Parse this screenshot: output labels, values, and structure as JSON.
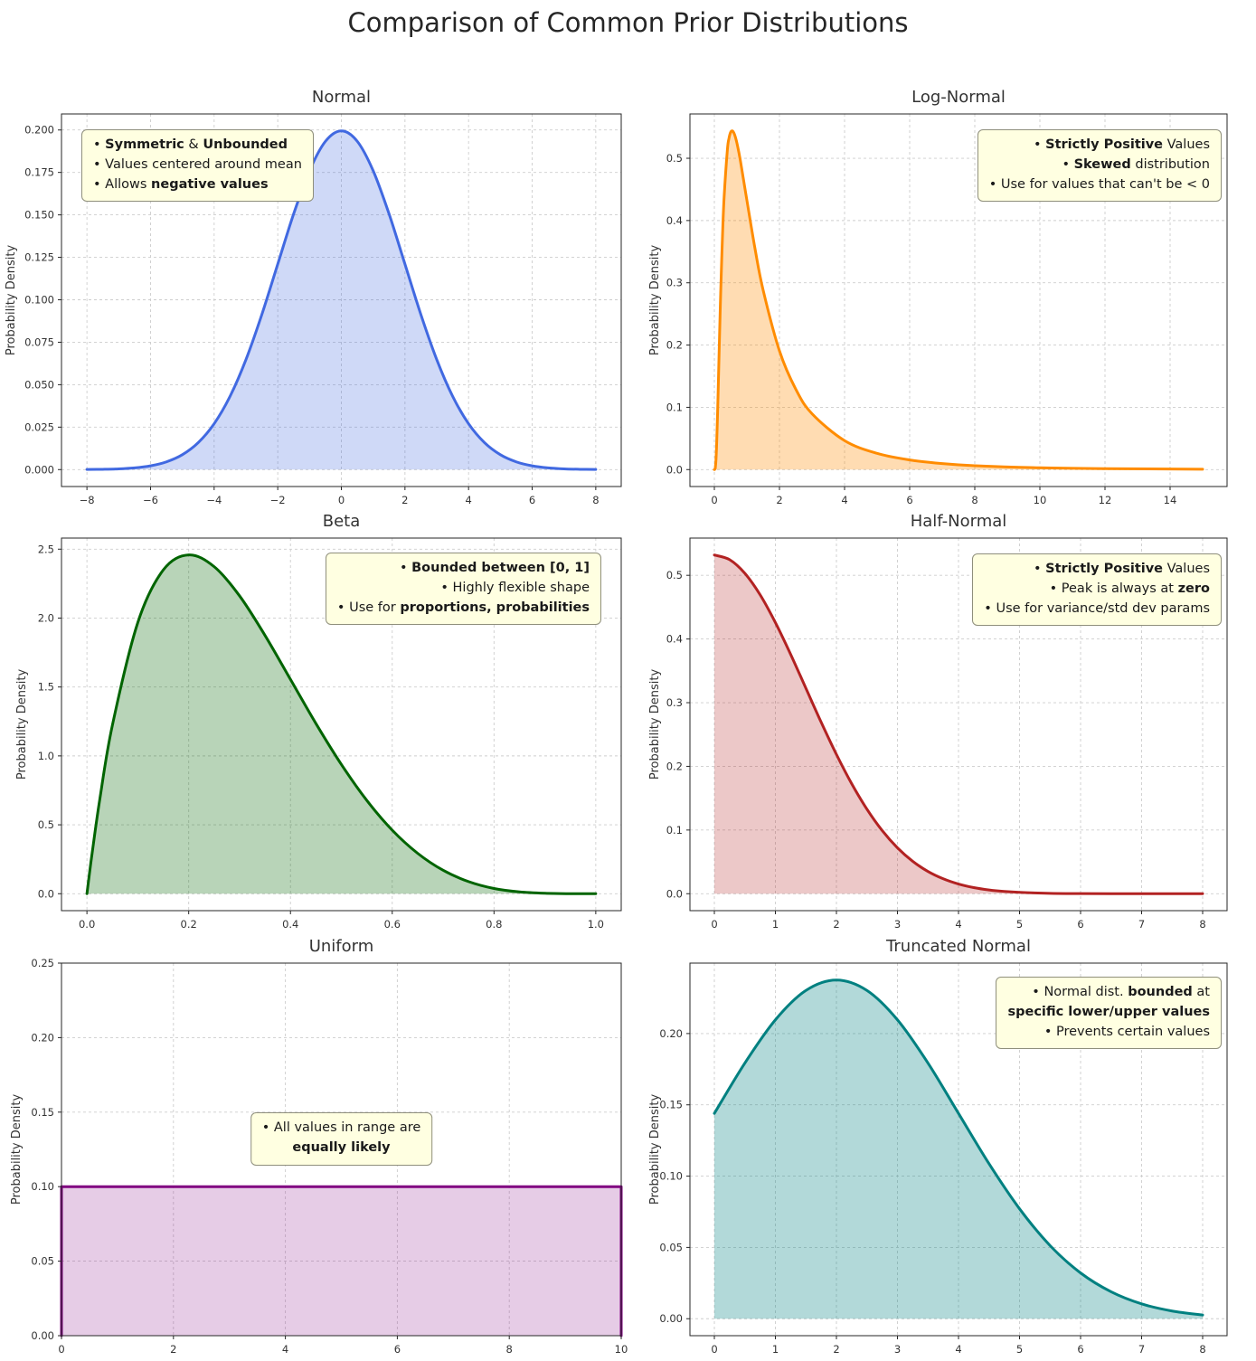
{
  "figure": {
    "title": "Comparison of Common Prior Distributions"
  },
  "chart_data": [
    {
      "type": "area",
      "title": "Normal",
      "ylabel": "Probability Density",
      "color": "#4169E1",
      "fill_opacity": 0.25,
      "line_width": 3,
      "shape": "smooth",
      "grid": true,
      "xlim": [
        -8.8,
        8.8
      ],
      "ylim": [
        -0.00997,
        0.20944
      ],
      "xticks": [
        -8,
        -6,
        -4,
        -2,
        0,
        2,
        4,
        6,
        8
      ],
      "xtick_labels": [
        "−8",
        "−6",
        "−4",
        "−2",
        "0",
        "2",
        "4",
        "6",
        "8"
      ],
      "yticks": [
        0,
        0.025,
        0.05,
        0.075,
        0.1,
        0.125,
        0.15,
        0.175,
        0.2
      ],
      "ytick_labels": [
        "0.000",
        "0.025",
        "0.050",
        "0.075",
        "0.100",
        "0.125",
        "0.150",
        "0.175",
        "0.200"
      ],
      "x": [
        -8,
        -7.5,
        -7,
        -6.5,
        -6,
        -5.5,
        -5,
        -4.5,
        -4,
        -3.5,
        -3,
        -2.5,
        -2,
        -1.5,
        -1,
        -0.5,
        0,
        0.5,
        1,
        1.5,
        2,
        2.5,
        3,
        3.5,
        4,
        4.5,
        5,
        5.5,
        6,
        6.5,
        7,
        7.5,
        8
      ],
      "y": [
        7e-05,
        0.00018,
        0.00044,
        0.00102,
        0.00222,
        0.00455,
        0.00876,
        0.01588,
        0.027,
        0.04314,
        0.06476,
        0.09132,
        0.12099,
        0.15057,
        0.17603,
        0.19333,
        0.19947,
        0.19333,
        0.17603,
        0.15057,
        0.12099,
        0.09132,
        0.06476,
        0.04314,
        0.027,
        0.01588,
        0.00876,
        0.00455,
        0.00222,
        0.00102,
        0.00044,
        0.00018,
        7e-05
      ],
      "annotation": {
        "anchor": "top-left",
        "align": "left",
        "ox": 22,
        "oy": 17,
        "lines": [
          [
            {
              "t": "• "
            },
            {
              "t": "Symmetric",
              "b": true
            },
            {
              "t": " & "
            },
            {
              "t": "Unbounded",
              "b": true
            }
          ],
          [
            {
              "t": "• Values centered around mean"
            }
          ],
          [
            {
              "t": "• Allows "
            },
            {
              "t": "negative values",
              "b": true
            }
          ]
        ]
      }
    },
    {
      "type": "area",
      "title": "Log-Normal",
      "ylabel": "Probability Density",
      "color": "#FF8C00",
      "fill_opacity": 0.3,
      "line_width": 3,
      "shape": "smooth",
      "grid": true,
      "xlim": [
        -0.75,
        15.75
      ],
      "ylim": [
        -0.0272,
        0.5712
      ],
      "xticks": [
        0,
        2,
        4,
        6,
        8,
        10,
        12,
        14
      ],
      "xtick_labels": [
        "0",
        "2",
        "4",
        "6",
        "8",
        "10",
        "12",
        "14"
      ],
      "yticks": [
        0,
        0.1,
        0.2,
        0.3,
        0.4,
        0.5
      ],
      "ytick_labels": [
        "0.0",
        "0.1",
        "0.2",
        "0.3",
        "0.4",
        "0.5"
      ],
      "x": [
        0,
        0.02,
        0.03,
        0.05,
        0.07,
        0.1,
        0.125,
        0.15,
        0.175,
        0.2,
        0.25,
        0.3,
        0.4,
        0.45,
        0.5,
        0.55,
        0.6,
        0.65,
        0.7,
        0.8,
        1.0,
        1.25,
        1.5,
        2,
        2.5,
        3,
        4,
        5,
        6,
        7,
        8,
        10,
        12,
        15
      ],
      "y": [
        0,
        0.0007,
        0.0031,
        0.016,
        0.0408,
        0.0927,
        0.1436,
        0.196,
        0.2465,
        0.294,
        0.375,
        0.4376,
        0.5136,
        0.5322,
        0.5418,
        0.544,
        0.5407,
        0.5333,
        0.5228,
        0.4961,
        0.4324,
        0.3545,
        0.2879,
        0.1907,
        0.1292,
        0.0897,
        0.0465,
        0.026,
        0.0155,
        0.0097,
        0.0063,
        0.0029,
        0.0015,
        0.0006
      ],
      "annotation": {
        "anchor": "top-right",
        "align": "right",
        "ox": 6,
        "oy": 17,
        "lines": [
          [
            {
              "t": "• "
            },
            {
              "t": "Strictly Positive",
              "b": true
            },
            {
              "t": " Values"
            }
          ],
          [
            {
              "t": "• "
            },
            {
              "t": "Skewed",
              "b": true
            },
            {
              "t": " distribution"
            }
          ],
          [
            {
              "t": "• Use for values that can't be < 0"
            }
          ]
        ]
      }
    },
    {
      "type": "area",
      "title": "Beta",
      "ylabel": "Probability Density",
      "color": "#006400",
      "fill_opacity": 0.28,
      "line_width": 3,
      "shape": "smooth",
      "grid": true,
      "xlim": [
        -0.05,
        1.05
      ],
      "ylim": [
        -0.1229,
        2.5805
      ],
      "xticks": [
        0,
        0.2,
        0.4,
        0.6,
        0.8,
        1.0
      ],
      "xtick_labels": [
        "0.0",
        "0.2",
        "0.4",
        "0.6",
        "0.8",
        "1.0"
      ],
      "yticks": [
        0,
        0.5,
        1.0,
        1.5,
        2.0,
        2.5
      ],
      "ytick_labels": [
        "0.0",
        "0.5",
        "1.0",
        "1.5",
        "2.0",
        "2.5"
      ],
      "x": [
        0,
        0.005,
        0.01,
        0.025,
        0.05,
        0.1,
        0.15,
        0.2,
        0.25,
        0.3,
        0.35,
        0.4,
        0.45,
        0.5,
        0.55,
        0.6,
        0.65,
        0.7,
        0.75,
        0.8,
        0.85,
        0.9,
        0.95,
        1.0
      ],
      "y": [
        0,
        0.147,
        0.288,
        0.678,
        1.222,
        1.968,
        2.349,
        2.458,
        2.373,
        2.161,
        1.874,
        1.555,
        1.235,
        0.938,
        0.677,
        0.461,
        0.293,
        0.17,
        0.088,
        0.038,
        0.013,
        0.003,
        0.0002,
        0
      ],
      "annotation": {
        "anchor": "top-right",
        "align": "right",
        "ox": 22,
        "oy": 16,
        "lines": [
          [
            {
              "t": "• "
            },
            {
              "t": "Bounded between [0, 1]",
              "b": true
            }
          ],
          [
            {
              "t": "• Highly flexible shape"
            }
          ],
          [
            {
              "t": "• Use for "
            },
            {
              "t": "proportions, probabilities",
              "b": true
            }
          ]
        ]
      }
    },
    {
      "type": "area",
      "title": "Half-Normal",
      "ylabel": "Probability Density",
      "color": "#B22222",
      "fill_opacity": 0.25,
      "line_width": 3,
      "shape": "smooth",
      "grid": true,
      "xlim": [
        -0.4,
        8.4
      ],
      "ylim": [
        -0.0266,
        0.5585
      ],
      "xticks": [
        0,
        1,
        2,
        3,
        4,
        5,
        6,
        7,
        8
      ],
      "xtick_labels": [
        "0",
        "1",
        "2",
        "3",
        "4",
        "5",
        "6",
        "7",
        "8"
      ],
      "yticks": [
        0,
        0.1,
        0.2,
        0.3,
        0.4,
        0.5
      ],
      "ytick_labels": [
        "0.0",
        "0.1",
        "0.2",
        "0.3",
        "0.4",
        "0.5"
      ],
      "x": [
        0,
        0.25,
        0.5,
        0.75,
        1,
        1.25,
        1.5,
        1.75,
        2,
        2.25,
        2.5,
        2.75,
        3,
        3.25,
        3.5,
        3.75,
        4,
        4.25,
        4.5,
        4.75,
        5,
        5.5,
        6,
        6.5,
        7,
        7.5,
        8
      ],
      "y": [
        0.5319,
        0.5246,
        0.5031,
        0.4694,
        0.4258,
        0.3759,
        0.3226,
        0.2693,
        0.2187,
        0.1727,
        0.1327,
        0.0991,
        0.072,
        0.0509,
        0.0349,
        0.0234,
        0.0152,
        0.0096,
        0.0059,
        0.0035,
        0.0021,
        0.0006,
        0.0002,
        5e-05,
        1e-05,
        0,
        0
      ],
      "annotation": {
        "anchor": "top-right",
        "align": "right",
        "ox": 6,
        "oy": 17,
        "lines": [
          [
            {
              "t": "• "
            },
            {
              "t": "Strictly Positive",
              "b": true
            },
            {
              "t": " Values"
            }
          ],
          [
            {
              "t": "• Peak is always at "
            },
            {
              "t": "zero",
              "b": true
            }
          ],
          [
            {
              "t": "• Use for variance/std dev params"
            }
          ]
        ]
      }
    },
    {
      "type": "area",
      "title": "Uniform",
      "ylabel": "Probability Density",
      "color": "#800080",
      "fill_opacity": 0.2,
      "line_width": 3,
      "shape": "box",
      "grid": true,
      "xlim": [
        0,
        10
      ],
      "ylim": [
        0,
        0.25
      ],
      "xticks": [
        0,
        2,
        4,
        6,
        8,
        10
      ],
      "xtick_labels": [
        "0",
        "2",
        "4",
        "6",
        "8",
        "10"
      ],
      "yticks": [
        0,
        0.05,
        0.1,
        0.15,
        0.2,
        0.25
      ],
      "ytick_labels": [
        "0.00",
        "0.05",
        "0.10",
        "0.15",
        "0.20",
        "0.25"
      ],
      "x": [
        0,
        10
      ],
      "y": [
        0.1,
        0.1
      ],
      "annotation": {
        "anchor": "center",
        "align": "center",
        "ox": 0,
        "oy": 165,
        "lines": [
          [
            {
              "t": "• All values in range are"
            }
          ],
          [
            {
              "t": "equally likely",
              "b": true
            }
          ]
        ]
      }
    },
    {
      "type": "area",
      "title": "Truncated Normal",
      "ylabel": "Probability Density",
      "color": "#008080",
      "fill_opacity": 0.3,
      "line_width": 3,
      "shape": "smooth",
      "grid": true,
      "xlim": [
        -0.4,
        8.4
      ],
      "ylim": [
        -0.0119,
        0.2494
      ],
      "xticks": [
        0,
        1,
        2,
        3,
        4,
        5,
        6,
        7,
        8
      ],
      "xtick_labels": [
        "0",
        "1",
        "2",
        "3",
        "4",
        "5",
        "6",
        "7",
        "8"
      ],
      "yticks": [
        0,
        0.05,
        0.1,
        0.15,
        0.2
      ],
      "ytick_labels": [
        "0.00",
        "0.05",
        "0.10",
        "0.15",
        "0.20"
      ],
      "x": [
        0,
        0.5,
        1,
        1.5,
        2,
        2.5,
        3,
        3.5,
        4,
        4.5,
        5,
        5.5,
        6,
        6.5,
        7,
        7.5,
        8
      ],
      "y": [
        0.144,
        0.1793,
        0.2096,
        0.2302,
        0.2375,
        0.2302,
        0.2096,
        0.1793,
        0.144,
        0.1087,
        0.0771,
        0.0513,
        0.0321,
        0.0189,
        0.0104,
        0.0054,
        0.0026
      ],
      "annotation": {
        "anchor": "top-right",
        "align": "right",
        "ox": 6,
        "oy": 15,
        "lines": [
          [
            {
              "t": "• Normal dist. "
            },
            {
              "t": "bounded",
              "b": true
            },
            {
              "t": " at"
            }
          ],
          [
            {
              "t": "specific lower/upper values",
              "b": true
            }
          ],
          [
            {
              "t": "• Prevents certain values"
            }
          ]
        ]
      }
    }
  ]
}
